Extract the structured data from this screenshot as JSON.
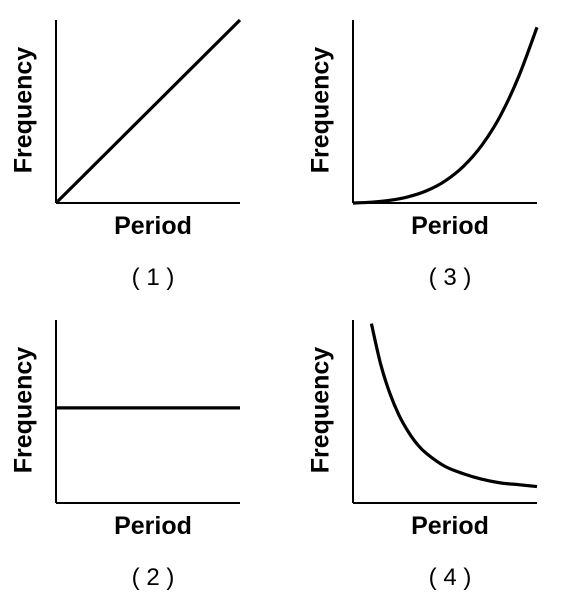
{
  "chart_data": [
    {
      "type": "line",
      "caption": "( 1 )",
      "xlabel": "Period",
      "ylabel": "Frequency",
      "x": [
        0,
        0.25,
        0.5,
        0.75,
        1
      ],
      "y": [
        0,
        0.25,
        0.5,
        0.75,
        1
      ],
      "xlim": [
        0,
        1
      ],
      "ylim": [
        0,
        1
      ],
      "grid": false
    },
    {
      "type": "line",
      "caption": "( 2 )",
      "xlabel": "Period",
      "ylabel": "Frequency",
      "x": [
        0,
        0.25,
        0.5,
        0.75,
        1
      ],
      "y": [
        0.52,
        0.52,
        0.52,
        0.52,
        0.52
      ],
      "xlim": [
        0,
        1
      ],
      "ylim": [
        0,
        1
      ],
      "grid": false
    },
    {
      "type": "line",
      "caption": "( 3 )",
      "xlabel": "Period",
      "ylabel": "Frequency",
      "x": [
        0,
        0.1,
        0.2,
        0.3,
        0.4,
        0.5,
        0.6,
        0.7,
        0.8,
        0.9,
        1
      ],
      "y": [
        0,
        0.0045,
        0.0145,
        0.034,
        0.067,
        0.12,
        0.2,
        0.315,
        0.475,
        0.69,
        0.96
      ],
      "xlim": [
        0,
        1
      ],
      "ylim": [
        0,
        1
      ],
      "grid": false
    },
    {
      "type": "line",
      "caption": "( 4 )",
      "xlabel": "Period",
      "ylabel": "Frequency",
      "x": [
        0.1,
        0.15,
        0.2,
        0.25,
        0.3,
        0.35,
        0.4,
        0.5,
        0.6,
        0.7,
        0.8,
        0.9,
        1
      ],
      "y": [
        0.98,
        0.76,
        0.6,
        0.48,
        0.39,
        0.32,
        0.27,
        0.2,
        0.16,
        0.13,
        0.11,
        0.1,
        0.09
      ],
      "xlim": [
        0,
        1
      ],
      "ylim": [
        0,
        1
      ],
      "grid": false
    }
  ]
}
